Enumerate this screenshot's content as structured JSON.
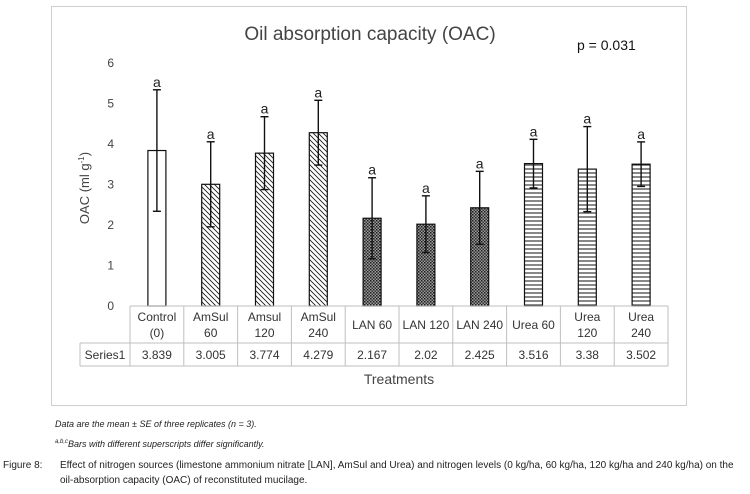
{
  "chart_data": {
    "type": "bar",
    "title": "Oil absorption capacity (OAC)",
    "annotation": "p = 0.031",
    "ylabel_main": "OAC (ml g",
    "ylabel_sup": "-1",
    "ylabel_end": ")",
    "xlabel": "Treatments",
    "ylim": [
      0,
      6
    ],
    "yticks": [
      "0",
      "1",
      "2",
      "3",
      "4",
      "5",
      "6"
    ],
    "categories": [
      [
        "Control",
        "(0)"
      ],
      [
        "AmSul",
        "60"
      ],
      [
        "Amsul",
        "120"
      ],
      [
        "AmSul",
        "240"
      ],
      [
        "LAN 60"
      ],
      [
        "LAN 120"
      ],
      [
        "LAN 240"
      ],
      [
        "Urea 60"
      ],
      [
        "Urea",
        "120"
      ],
      [
        "Urea",
        "240"
      ]
    ],
    "series": [
      {
        "name": "Series1",
        "values": [
          3.839,
          3.005,
          3.774,
          4.279,
          2.167,
          2.02,
          2.425,
          3.516,
          3.38,
          3.502
        ],
        "value_labels": [
          "3.839",
          "3.005",
          "3.774",
          "4.279",
          "2.167",
          "2.02",
          "2.425",
          "3.516",
          "3.38",
          "3.502"
        ],
        "errors": [
          1.5,
          1.05,
          0.9,
          0.8,
          1.0,
          0.7,
          0.9,
          0.6,
          1.05,
          0.55
        ],
        "letters": [
          "a",
          "a",
          "a",
          "a",
          "a",
          "a",
          "a",
          "a",
          "a",
          "a"
        ],
        "fills": [
          "none",
          "hatch",
          "hatch",
          "hatch",
          "dots",
          "dots",
          "dots",
          "hlines",
          "hlines",
          "hlines"
        ]
      }
    ]
  },
  "notes": {
    "line1": "Data are the mean ± SE of three replicates (n = 3).",
    "line2_sup": "a,b,c",
    "line2": "Bars with different superscripts differ significantly."
  },
  "caption": {
    "label": "Figure 8:",
    "text": "Effect of nitrogen sources (limestone ammonium nitrate [LAN], AmSul and Urea) and nitrogen levels (0 kg/ha, 60 kg/ha, 120 kg/ha and 240 kg/ha) on the oil-absorption capacity (OAC) of reconstituted mucilage."
  },
  "colors": {
    "bar_stroke": "#111111",
    "gridline": "#dddddd",
    "table_border": "#bfbfbf",
    "text": "#333333"
  }
}
